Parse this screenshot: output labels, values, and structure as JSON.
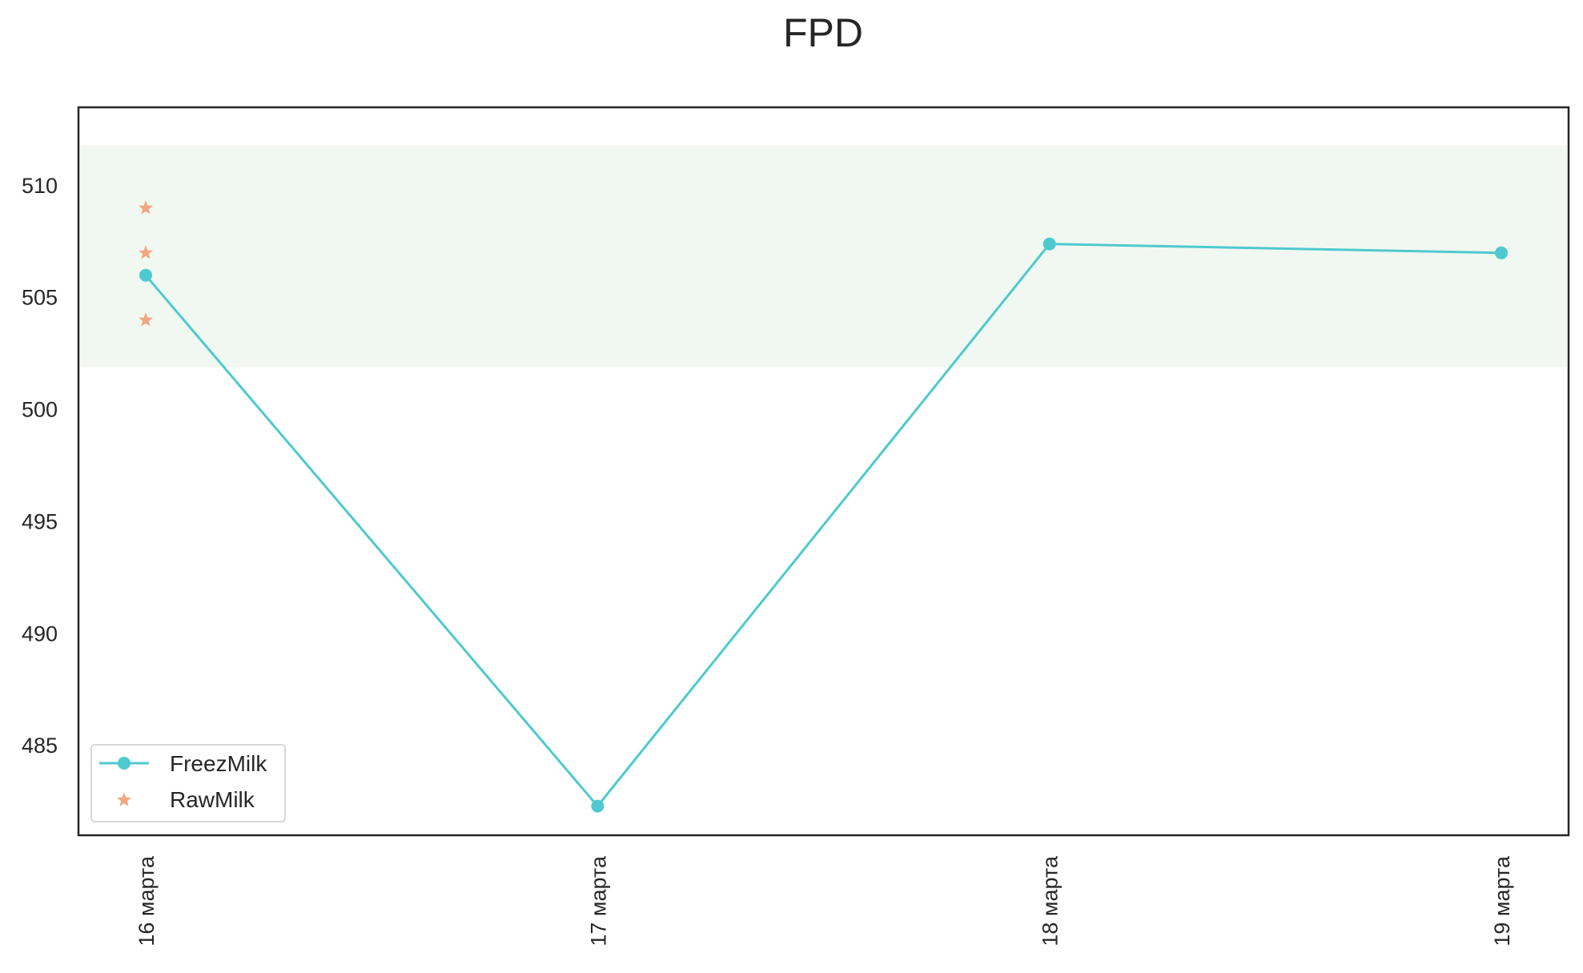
{
  "chart_data": {
    "type": "line",
    "title": "FPD",
    "xlabel": "",
    "ylabel": "",
    "categories": [
      "16 марта",
      "17 марта",
      "18 марта",
      "19 марта"
    ],
    "ylim": [
      481,
      513.5
    ],
    "yticks": [
      485,
      490,
      495,
      500,
      505,
      510
    ],
    "band": {
      "y_from": 501.9,
      "y_to": 511.8,
      "color": "#f1f8f1"
    },
    "series": [
      {
        "name": "FreezMilk",
        "kind": "line",
        "marker": "circle",
        "color": "#4ec9d0",
        "points": [
          {
            "x": "16 марта",
            "y": 506.0
          },
          {
            "x": "17 марта",
            "y": 482.3
          },
          {
            "x": "18 марта",
            "y": 507.4
          },
          {
            "x": "19 марта",
            "y": 507.0
          }
        ]
      },
      {
        "name": "RawMilk",
        "kind": "scatter",
        "marker": "star",
        "color": "#f4a582",
        "points": [
          {
            "x": "16 марта",
            "y": 509.0
          },
          {
            "x": "16 марта",
            "y": 507.0
          },
          {
            "x": "16 марта",
            "y": 504.0
          }
        ]
      }
    ],
    "grid": false,
    "legend_position": "lower-left"
  }
}
